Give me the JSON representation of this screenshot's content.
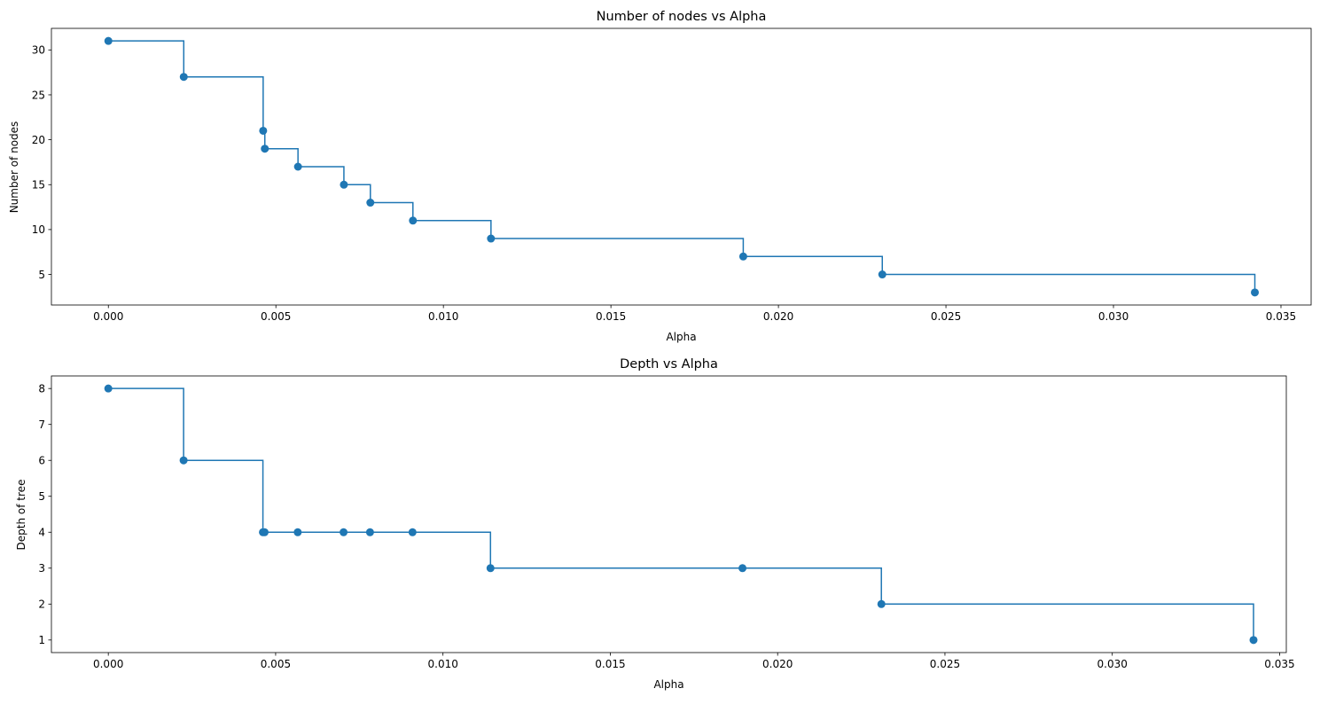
{
  "figure": {
    "line_color": "#1f77b4",
    "background": "#ffffff"
  },
  "chart_data": [
    {
      "type": "line",
      "drawstyle": "steps-post",
      "marker": "o",
      "title": "Number of nodes vs Alpha",
      "xlabel": "Alpha",
      "ylabel": "Number of nodes",
      "xlim": [
        -0.0017,
        0.0359
      ],
      "ylim": [
        1.6,
        32.4
      ],
      "xticks": [
        0.0,
        0.005,
        0.01,
        0.015,
        0.02,
        0.025,
        0.03,
        0.035
      ],
      "xtick_labels": [
        "0.000",
        "0.005",
        "0.010",
        "0.015",
        "0.020",
        "0.025",
        "0.030",
        "0.035"
      ],
      "yticks": [
        5,
        10,
        15,
        20,
        25,
        30
      ],
      "ytick_labels": [
        "5",
        "10",
        "15",
        "20",
        "25",
        "30"
      ],
      "grid": false,
      "x": [
        0.0,
        0.00225,
        0.00462,
        0.00467,
        0.00566,
        0.00703,
        0.00782,
        0.00909,
        0.01142,
        0.01895,
        0.0231,
        0.03422
      ],
      "y": [
        31,
        27,
        21,
        19,
        17,
        15,
        13,
        11,
        9,
        7,
        5,
        3
      ]
    },
    {
      "type": "line",
      "drawstyle": "steps-post",
      "marker": "o",
      "title": "Depth vs Alpha",
      "xlabel": "Alpha",
      "ylabel": "Depth of tree",
      "xlim": [
        -0.0017,
        0.0352
      ],
      "ylim": [
        0.65,
        8.35
      ],
      "xticks": [
        0.0,
        0.005,
        0.01,
        0.015,
        0.02,
        0.025,
        0.03,
        0.035
      ],
      "xtick_labels": [
        "0.000",
        "0.005",
        "0.010",
        "0.015",
        "0.020",
        "0.025",
        "0.030",
        "0.035"
      ],
      "yticks": [
        1,
        2,
        3,
        4,
        5,
        6,
        7,
        8
      ],
      "ytick_labels": [
        "1",
        "2",
        "3",
        "4",
        "5",
        "6",
        "7",
        "8"
      ],
      "grid": false,
      "x": [
        0.0,
        0.00225,
        0.00462,
        0.00467,
        0.00566,
        0.00703,
        0.00782,
        0.00909,
        0.01142,
        0.01895,
        0.0231,
        0.03422
      ],
      "y": [
        8,
        6,
        4,
        4,
        4,
        4,
        4,
        4,
        3,
        3,
        2,
        1
      ]
    }
  ]
}
